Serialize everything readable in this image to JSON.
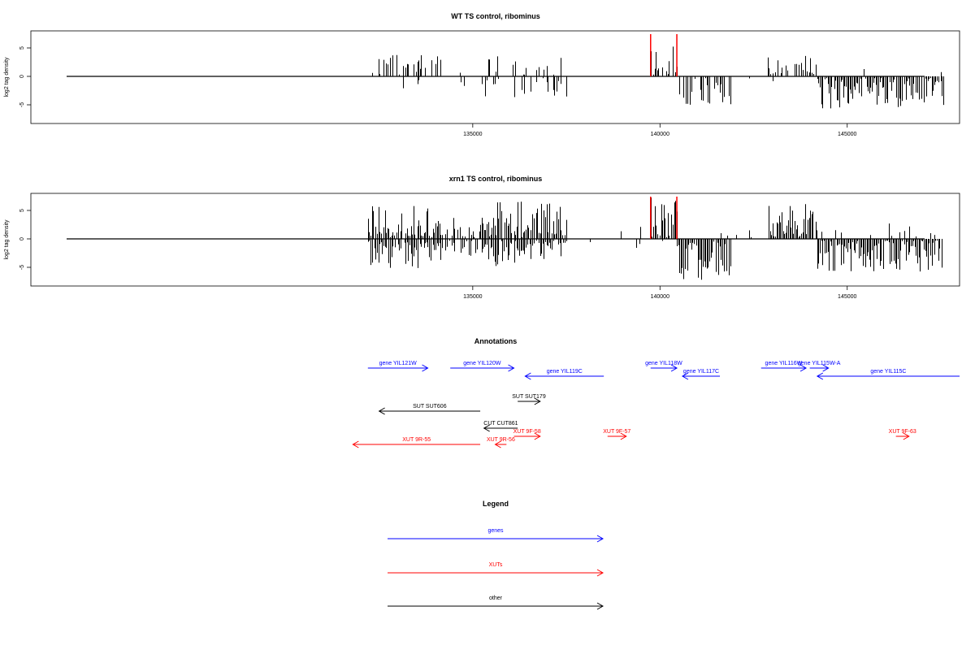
{
  "chart_data": [
    {
      "type": "bar",
      "title": "WT TS control, ribominus",
      "ylabel": "log2 tag density",
      "xlabel": "",
      "xlim": [
        123200,
        148000
      ],
      "ylim": [
        -8,
        8
      ],
      "x_ticks": [
        135000,
        140000,
        145000
      ],
      "y_ticks": [
        5,
        0,
        -5
      ],
      "highlight_lines_x": [
        139750,
        140450
      ],
      "highlight_color": "#ff0000",
      "segments": [
        {
          "x_start": 132200,
          "x_end": 134200,
          "pos_density": 0.4,
          "pos_max": 3.5,
          "neg_density": 0.05,
          "neg_max": 2.5
        },
        {
          "x_start": 134200,
          "x_end": 135200,
          "pos_density": 0.02,
          "pos_max": 1.0,
          "neg_density": 0.1,
          "neg_max": 1.5
        },
        {
          "x_start": 135200,
          "x_end": 137500,
          "pos_density": 0.18,
          "pos_max": 3.5,
          "neg_density": 0.18,
          "neg_max": 3.5
        },
        {
          "x_start": 137500,
          "x_end": 139750,
          "pos_density": 0.0,
          "pos_max": 0.5,
          "neg_density": 0.03,
          "neg_max": 1.5
        },
        {
          "x_start": 139750,
          "x_end": 140450,
          "pos_density": 0.85,
          "pos_max": 6.0,
          "neg_density": 0.02,
          "neg_max": 1.0
        },
        {
          "x_start": 140450,
          "x_end": 141900,
          "pos_density": 0.02,
          "pos_max": 1.0,
          "neg_density": 0.45,
          "neg_max": 5.0
        },
        {
          "x_start": 141900,
          "x_end": 142800,
          "pos_density": 0.0,
          "pos_max": 0.5,
          "neg_density": 0.02,
          "neg_max": 1.0
        },
        {
          "x_start": 142800,
          "x_end": 144200,
          "pos_density": 0.45,
          "pos_max": 3.5,
          "neg_density": 0.02,
          "neg_max": 1.0
        },
        {
          "x_start": 144200,
          "x_end": 147600,
          "pos_density": 0.01,
          "pos_max": 1.0,
          "neg_density": 0.9,
          "neg_max": 5.5
        }
      ]
    },
    {
      "type": "bar",
      "title": "xrn1 TS control, ribominus",
      "ylabel": "log2 tag density",
      "xlabel": "",
      "xlim": [
        123200,
        148000
      ],
      "ylim": [
        -8,
        8
      ],
      "x_ticks": [
        135000,
        140000,
        145000
      ],
      "y_ticks": [
        5,
        0,
        -5
      ],
      "highlight_lines_x": [
        139750,
        140450
      ],
      "highlight_color": "#ff0000",
      "segments": [
        {
          "x_start": 132200,
          "x_end": 134200,
          "pos_density": 0.9,
          "pos_max": 5.5,
          "neg_density": 0.8,
          "neg_max": 5.0
        },
        {
          "x_start": 134200,
          "x_end": 135200,
          "pos_density": 0.6,
          "pos_max": 4.0,
          "neg_density": 0.5,
          "neg_max": 4.5
        },
        {
          "x_start": 135200,
          "x_end": 137500,
          "pos_density": 0.85,
          "pos_max": 6.5,
          "neg_density": 0.8,
          "neg_max": 4.5
        },
        {
          "x_start": 137500,
          "x_end": 139750,
          "pos_density": 0.05,
          "pos_max": 2.0,
          "neg_density": 0.05,
          "neg_max": 1.5
        },
        {
          "x_start": 139750,
          "x_end": 140450,
          "pos_density": 0.95,
          "pos_max": 7.0,
          "neg_density": 0.1,
          "neg_max": 1.0
        },
        {
          "x_start": 140450,
          "x_end": 141900,
          "pos_density": 0.05,
          "pos_max": 1.0,
          "neg_density": 0.98,
          "neg_max": 7.5
        },
        {
          "x_start": 141900,
          "x_end": 142900,
          "pos_density": 0.05,
          "pos_max": 1.5,
          "neg_density": 0.05,
          "neg_max": 1.0
        },
        {
          "x_start": 142900,
          "x_end": 144200,
          "pos_density": 0.95,
          "pos_max": 6.0,
          "neg_density": 0.05,
          "neg_max": 1.0
        },
        {
          "x_start": 144200,
          "x_end": 147600,
          "pos_density": 0.08,
          "pos_max": 2.5,
          "neg_density": 0.95,
          "neg_max": 5.5
        }
      ]
    }
  ],
  "annotations": {
    "title": "Annotations",
    "items": [
      {
        "label": "gene YIL121W",
        "category": "genes",
        "dir": "+",
        "start": 132200,
        "end": 133800,
        "row": 0
      },
      {
        "label": "gene YIL120W",
        "category": "genes",
        "dir": "+",
        "start": 134400,
        "end": 136100,
        "row": 0
      },
      {
        "label": "gene YIL119C",
        "category": "genes",
        "dir": "-",
        "start": 136400,
        "end": 138500,
        "row": 1
      },
      {
        "label": "gene YIL118W",
        "category": "genes",
        "dir": "+",
        "start": 139750,
        "end": 140450,
        "row": 0
      },
      {
        "label": "gene YIL117C",
        "category": "genes",
        "dir": "-",
        "start": 140600,
        "end": 141600,
        "row": 1
      },
      {
        "label": "gene YIL116W",
        "category": "genes",
        "dir": "+",
        "start": 142700,
        "end": 143900,
        "row": 0
      },
      {
        "label": "gene YIL115W-A",
        "category": "genes",
        "dir": "+",
        "start": 144000,
        "end": 144500,
        "row": 0
      },
      {
        "label": "gene YIL115C",
        "category": "genes",
        "dir": "-",
        "start": 144200,
        "end": 148000,
        "row": 1
      },
      {
        "label": "SUT SUT606",
        "category": "other",
        "dir": "-",
        "start": 132500,
        "end": 135200,
        "row": 3
      },
      {
        "label": "SUT SUT179",
        "category": "other",
        "dir": "+",
        "start": 136200,
        "end": 136800,
        "row": 2
      },
      {
        "label": "CUT CUT861",
        "category": "other",
        "dir": "-",
        "start": 135300,
        "end": 136200,
        "row": 4
      },
      {
        "label": "XUT 9F-58",
        "category": "XUTs",
        "dir": "+",
        "start": 136100,
        "end": 136800,
        "row": 5
      },
      {
        "label": "XUT 9F-57",
        "category": "XUTs",
        "dir": "+",
        "start": 138600,
        "end": 139100,
        "row": 5
      },
      {
        "label": "XUT 9F-63",
        "category": "XUTs",
        "dir": "+",
        "start": 146300,
        "end": 146650,
        "row": 5
      },
      {
        "label": "XUT 9R-55",
        "category": "XUTs",
        "dir": "-",
        "start": 131800,
        "end": 135200,
        "row": 6
      },
      {
        "label": "XUT 9R-56",
        "category": "XUTs",
        "dir": "-",
        "start": 135600,
        "end": 135900,
        "row": 6
      }
    ]
  },
  "legend": {
    "title": "Legend",
    "items": [
      {
        "label": "genes",
        "color": "#0000ff"
      },
      {
        "label": "XUTs",
        "color": "#ff0000"
      },
      {
        "label": "other",
        "color": "#000000"
      }
    ]
  },
  "colors": {
    "genes": "#0000ff",
    "XUTs": "#ff0000",
    "other": "#000000",
    "highlight": "#ff0000"
  }
}
